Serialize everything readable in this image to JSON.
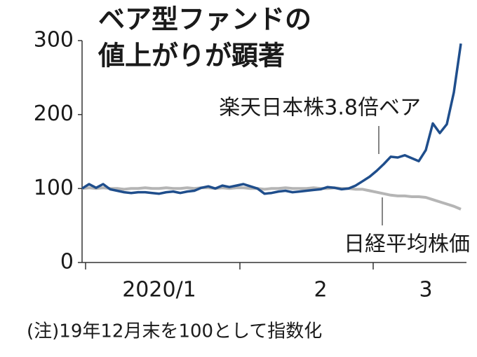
{
  "chart_data": {
    "type": "line",
    "title_lines": [
      "ベア型ファンドの",
      "値上がりが顕著"
    ],
    "categories": [
      null,
      null,
      null,
      null,
      null,
      null,
      null,
      null,
      null,
      null,
      null,
      "2020/1",
      null,
      null,
      null,
      null,
      null,
      null,
      null,
      null,
      null,
      null,
      null,
      null,
      null,
      null,
      null,
      null,
      null,
      null,
      null,
      null,
      null,
      null,
      "2",
      null,
      null,
      null,
      null,
      null,
      null,
      null,
      null,
      null,
      null,
      null,
      null,
      null,
      null,
      "3",
      null,
      null,
      null,
      null,
      null
    ],
    "series": [
      {
        "name": "楽天日本株3.8倍ベア",
        "color": "#1f4e8c",
        "values": [
          100,
          106,
          101,
          106,
          99,
          97,
          95,
          94,
          95,
          95,
          94,
          93,
          95,
          96,
          94,
          96,
          97,
          101,
          103,
          100,
          104,
          102,
          104,
          106,
          103,
          100,
          93,
          94,
          96,
          97,
          95,
          96,
          97,
          98,
          99,
          102,
          101,
          99,
          100,
          104,
          110,
          116,
          124,
          133,
          143,
          142,
          145,
          141,
          137,
          152,
          188,
          175,
          187,
          230,
          296
        ]
      },
      {
        "name": "日経平均株価",
        "color": "#b5b5b5",
        "values": [
          100,
          101,
          100,
          101,
          100,
          100,
          99,
          100,
          100,
          101,
          100,
          100,
          101,
          100,
          100,
          101,
          100,
          101,
          101,
          100,
          101,
          100,
          101,
          101,
          100,
          100,
          99,
          100,
          100,
          101,
          100,
          100,
          100,
          101,
          100,
          100,
          101,
          100,
          100,
          99,
          99,
          97,
          95,
          93,
          91,
          90,
          90,
          89,
          89,
          88,
          85,
          82,
          79,
          76,
          72
        ]
      }
    ],
    "ylim": [
      0,
      300
    ],
    "yticks": [
      0,
      100,
      200,
      300
    ],
    "note": "(注)19年12月末を100として指数化"
  }
}
